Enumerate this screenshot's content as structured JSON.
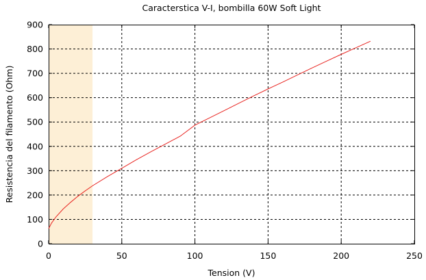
{
  "chart_data": {
    "type": "line",
    "title": "Caracterstica V-I, bombilla 60W Soft Light",
    "xlabel": "Tension (V)",
    "ylabel": "Resistencia del filamento (Ohm)",
    "xlim": [
      0,
      250
    ],
    "ylim": [
      0,
      900
    ],
    "xticks": [
      "0",
      "50",
      "100",
      "150",
      "200",
      "250"
    ],
    "yticks": [
      "0",
      "100",
      "200",
      "300",
      "400",
      "500",
      "600",
      "700",
      "800",
      "900"
    ],
    "grid": true,
    "grid_style": "dashed-black",
    "highlight_band": {
      "x_range": [
        0,
        30
      ],
      "color": "#fdefd6"
    },
    "series": [
      {
        "color": "#e8231f",
        "x": [
          0,
          2,
          5,
          10,
          15,
          20,
          25,
          30,
          40,
          50,
          60,
          70,
          80,
          90,
          100,
          110,
          120,
          130,
          140,
          150,
          160,
          170,
          180,
          190,
          200,
          210,
          220
        ],
        "y": [
          62,
          85,
          110,
          143,
          170,
          195,
          217,
          238,
          275,
          310,
          345,
          378,
          410,
          442,
          487,
          517,
          547,
          577,
          607,
          636,
          664,
          693,
          722,
          750,
          778,
          805,
          832
        ]
      }
    ]
  }
}
